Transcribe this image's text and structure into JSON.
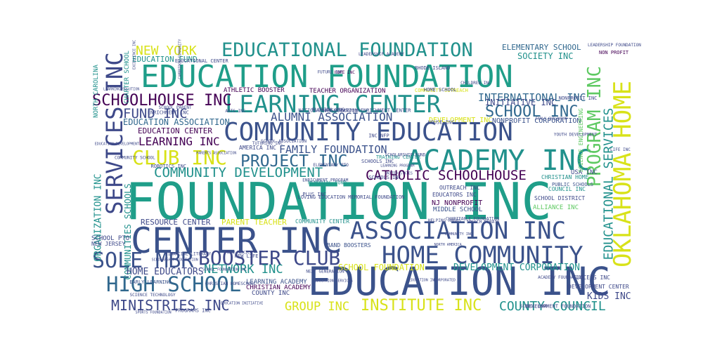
{
  "chart_data": {
    "type": "wordcloud",
    "title": "",
    "palette": [
      "#440154",
      "#3b528b",
      "#21918c",
      "#5ec962",
      "#b5de2b"
    ],
    "words": [
      {
        "text": "FOUNDATION INC",
        "weight": 100,
        "color": "#1f9e89",
        "rotate": false
      },
      {
        "text": "EDUCATION FOUNDATION",
        "weight": 72,
        "color": "#1f9e89",
        "rotate": false
      },
      {
        "text": "EDUCATION INC",
        "weight": 70,
        "color": "#3b528b",
        "rotate": false
      },
      {
        "text": "CENTER INC",
        "weight": 64,
        "color": "#3b528b",
        "rotate": false
      },
      {
        "text": "LEARNING CENTER",
        "weight": 55,
        "color": "#21918c",
        "rotate": false
      },
      {
        "text": "COMMUNITY EDUCATION",
        "weight": 53,
        "color": "#3b528b",
        "rotate": false
      },
      {
        "text": "ACADEMY INC",
        "weight": 52,
        "color": "#21918c",
        "rotate": false
      },
      {
        "text": "ASSOCIATION INC",
        "weight": 50,
        "color": "#3b528b",
        "rotate": false
      },
      {
        "text": "HOME COMMUNITY",
        "weight": 49,
        "color": "#3b528b",
        "rotate": false
      },
      {
        "text": "OKLAHOMA HOME",
        "weight": 47,
        "color": "#d8e219",
        "rotate": true
      },
      {
        "text": "SERVICES INC",
        "weight": 45,
        "color": "#3e4989",
        "rotate": true
      },
      {
        "text": "SOLE MBR",
        "weight": 40,
        "color": "#3b528b",
        "rotate": false
      },
      {
        "text": "BOOSTER CLUB",
        "weight": 39,
        "color": "#3e4989",
        "rotate": false
      },
      {
        "text": "HIGH SCHOOL",
        "weight": 37,
        "color": "#31688e",
        "rotate": false
      },
      {
        "text": "EDUCATIONAL FOUNDATION",
        "weight": 35,
        "color": "#21918c",
        "rotate": false
      },
      {
        "text": "PROGRAM INC",
        "weight": 34,
        "color": "#5ec962",
        "rotate": true
      },
      {
        "text": "CLUB INC",
        "weight": 33,
        "color": "#d8e219",
        "rotate": false
      },
      {
        "text": "PROJECT INC",
        "weight": 32,
        "color": "#31688e",
        "rotate": false
      },
      {
        "text": "SCHOOLHOUSE INC",
        "weight": 30,
        "color": "#440154",
        "rotate": false
      },
      {
        "text": "FUND INC",
        "weight": 30,
        "color": "#3e4989",
        "rotate": false
      },
      {
        "text": "SCHOOL INC",
        "weight": 30,
        "color": "#31688e",
        "rotate": false
      },
      {
        "text": "MINISTRIES INC",
        "weight": 28,
        "color": "#3e4989",
        "rotate": false
      },
      {
        "text": "INSTITUTE INC",
        "weight": 28,
        "color": "#d8e219",
        "rotate": false
      },
      {
        "text": "EDUCATIONAL SERVICES",
        "weight": 27,
        "color": "#21918c",
        "rotate": true
      },
      {
        "text": "CATHOLIC SCHOOLHOUSE",
        "weight": 26,
        "color": "#440154",
        "rotate": false
      },
      {
        "text": "COMMUNITY DEVELOPMENT",
        "weight": 25,
        "color": "#21918c",
        "rotate": false
      },
      {
        "text": "NEW YORK",
        "weight": 25,
        "color": "#d8e219",
        "rotate": false
      },
      {
        "text": "ALUMNI ASSOCIATION",
        "weight": 24,
        "color": "#3b528b",
        "rotate": false
      },
      {
        "text": "GROUP INC",
        "weight": 24,
        "color": "#d8e219",
        "rotate": false
      },
      {
        "text": "COUNTY COUNCIL",
        "weight": 24,
        "color": "#21918c",
        "rotate": false
      },
      {
        "text": "NETWORK INC",
        "weight": 23,
        "color": "#21918c",
        "rotate": false
      },
      {
        "text": "FAMILY FOUNDATION",
        "weight": 21,
        "color": "#3b528b",
        "rotate": false
      },
      {
        "text": "LEARNING INC",
        "weight": 20,
        "color": "#440154",
        "rotate": false
      },
      {
        "text": "INTERNATIONAL INC",
        "weight": 19,
        "color": "#31688e",
        "rotate": false
      },
      {
        "text": "ORGANIZATION INC",
        "weight": 17,
        "color": "#21918c",
        "rotate": true
      },
      {
        "text": "COMMUNITIES SCHOOLS",
        "weight": 17,
        "color": "#21918c",
        "rotate": true
      },
      {
        "text": "HOME EDUCATORS",
        "weight": 17,
        "color": "#3e4989",
        "rotate": false
      },
      {
        "text": "DEVELOPMENT CORPORATION",
        "weight": 17,
        "color": "#21918c",
        "rotate": false
      },
      {
        "text": "SCHOOL FOUNDATION",
        "weight": 16,
        "color": "#d8e219",
        "rotate": false
      },
      {
        "text": "INITIATIVE INC",
        "weight": 15,
        "color": "#3e4989",
        "rotate": false
      },
      {
        "text": "EDUCATION ASSOCIATION",
        "weight": 15,
        "color": "#31688e",
        "rotate": false
      },
      {
        "text": "SOCIETY INC",
        "weight": 14,
        "color": "#21918c",
        "rotate": false
      },
      {
        "text": "EDUCATION CENTER",
        "weight": 14,
        "color": "#440154",
        "rotate": false
      },
      {
        "text": "ELEMENTARY SCHOOL",
        "weight": 13,
        "color": "#31688e",
        "rotate": false
      },
      {
        "text": "PARENT TEACHER",
        "weight": 13,
        "color": "#d8e219",
        "rotate": false
      },
      {
        "text": "KIDS INC",
        "weight": 13,
        "color": "#3e4989",
        "rotate": false
      },
      {
        "text": "RESOURCE CENTER",
        "weight": 12,
        "color": "#3e4989",
        "rotate": false
      },
      {
        "text": "EDUCATION FUND",
        "weight": 12,
        "color": "#21918c",
        "rotate": false
      },
      {
        "text": "NONPROFIT CORPORATION",
        "weight": 12,
        "color": "#3b528b",
        "rotate": false
      },
      {
        "text": "DEVELOPMENT INC",
        "weight": 12,
        "color": "#d8e219",
        "rotate": false
      },
      {
        "text": "NJ NONPROFIT",
        "weight": 12,
        "color": "#440154",
        "rotate": false
      },
      {
        "text": "MIDDLE SCHOOL",
        "weight": 11,
        "color": "#3b528b",
        "rotate": false
      },
      {
        "text": "CHRISTIAN ACADEMY",
        "weight": 11,
        "color": "#440154",
        "rotate": false
      },
      {
        "text": "LEARNING ACADEMY",
        "weight": 11,
        "color": "#3b528b",
        "rotate": false
      },
      {
        "text": "BAND BOOSTERS",
        "weight": 10,
        "color": "#3b528b",
        "rotate": false
      },
      {
        "text": "COUNTY INC",
        "weight": 10,
        "color": "#3e4989",
        "rotate": false
      },
      {
        "text": "ALLIANCE INC",
        "weight": 10,
        "color": "#5ec962",
        "rotate": false
      },
      {
        "text": "SCHOOL DISTRICT",
        "weight": 10,
        "color": "#3e4989",
        "rotate": false
      },
      {
        "text": "COMMUNITY CENTER",
        "weight": 10,
        "color": "#21918c",
        "rotate": false
      },
      {
        "text": "SCHOOL PTO",
        "weight": 10,
        "color": "#3e4989",
        "rotate": false
      },
      {
        "text": "NEW JERSEY",
        "weight": 10,
        "color": "#3e4989",
        "rotate": false
      },
      {
        "text": "ATHLETIC BOOSTER",
        "weight": 10,
        "color": "#440154",
        "rotate": false
      },
      {
        "text": "DEVELOPMENT CENTER",
        "weight": 10,
        "color": "#3e4989",
        "rotate": false
      },
      {
        "text": "SUCCESS INC",
        "weight": 10,
        "color": "#3e4989",
        "rotate": false
      },
      {
        "text": "OUTREACH INC",
        "weight": 9,
        "color": "#3e4989",
        "rotate": false
      },
      {
        "text": "EDUCATORS INC",
        "weight": 9,
        "color": "#3e4989",
        "rotate": false
      },
      {
        "text": "USA INC",
        "weight": 9,
        "color": "#3e4989",
        "rotate": false
      },
      {
        "text": "CHRISTIAN HOME",
        "weight": 9,
        "color": "#21918c",
        "rotate": false
      },
      {
        "text": "COUNCIL INC",
        "weight": 9,
        "color": "#21918c",
        "rotate": false
      },
      {
        "text": "PUBLIC SCHOOLS",
        "weight": 9,
        "color": "#3b528b",
        "rotate": false
      },
      {
        "text": "AMERICA INC",
        "weight": 9,
        "color": "#3e4989",
        "rotate": false
      },
      {
        "text": "SCHOOLS INC",
        "weight": 9,
        "color": "#3e4989",
        "rotate": false
      },
      {
        "text": "NORTH CAROLINA",
        "weight": 9,
        "color": "#21918c",
        "rotate": true
      },
      {
        "text": "CHARTER SCHOOL",
        "weight": 9,
        "color": "#21918c",
        "rotate": true
      },
      {
        "text": "TEACHER ORGANIZATION",
        "weight": 8,
        "color": "#440154",
        "rotate": false
      },
      {
        "text": "COMMUNITY OUTREACH",
        "weight": 8,
        "color": "#d8e219",
        "rotate": false
      },
      {
        "text": "SCIENCE ENGINEERING",
        "weight": 8,
        "color": "#5ec962",
        "rotate": true
      },
      {
        "text": "HOPE INC",
        "weight": 7,
        "color": "#440154",
        "rotate": false
      },
      {
        "text": "LIFE INC",
        "weight": 7,
        "color": "#3e4989",
        "rotate": false
      },
      {
        "text": "NON PROFIT",
        "weight": 7,
        "color": "#440154",
        "rotate": false
      },
      {
        "text": "LEADERSHIP FOUNDATION",
        "weight": 6,
        "color": "#3e4989",
        "rotate": false
      },
      {
        "text": "LOVING EDUCATION MEMORIAL FOUNDATION",
        "weight": 6,
        "color": "#3e4989",
        "rotate": false
      },
      {
        "text": "ENRICHMENT INC",
        "weight": 6,
        "color": "#3e4989",
        "rotate": false
      },
      {
        "text": "MEMORIAL FUND",
        "weight": 6,
        "color": "#21918c",
        "rotate": false
      },
      {
        "text": "EARLY LEARNING",
        "weight": 6,
        "color": "#3b528b",
        "rotate": false
      },
      {
        "text": "TRAINING CENTER",
        "weight": 6,
        "color": "#21918c",
        "rotate": false
      },
      {
        "text": "NEW LIFE",
        "weight": 6,
        "color": "#3e4989",
        "rotate": false
      },
      {
        "text": "RHODE ISLAND",
        "weight": 6,
        "color": "#3e4989",
        "rotate": false
      },
      {
        "text": "NATIONAL ASSOCIATION ENRICHMENT CENTER",
        "weight": 6,
        "color": "#3e4989",
        "rotate": false
      },
      {
        "text": "HOME SCHOOL",
        "weight": 6,
        "color": "#3e4989",
        "rotate": false
      },
      {
        "text": "SCHOOLS INC",
        "weight": 6,
        "color": "#3e4989",
        "rotate": false
      },
      {
        "text": "EDUCATIONAL CENTER",
        "weight": 6,
        "color": "#3e4989",
        "rotate": false
      },
      {
        "text": "DEVELOPMENT FOUNDATION",
        "weight": 6,
        "color": "#3e4989",
        "rotate": false
      },
      {
        "text": "ROBOTICS INC",
        "weight": 6,
        "color": "#3e4989",
        "rotate": false
      },
      {
        "text": "NONPROFIT INC",
        "weight": 6,
        "color": "#3e4989",
        "rotate": false
      },
      {
        "text": "PLUS INC",
        "weight": 6,
        "color": "#3e4989",
        "rotate": false
      },
      {
        "text": "HOUSE INC",
        "weight": 6,
        "color": "#3e4989",
        "rotate": false
      },
      {
        "text": "PROGRAMS INC",
        "weight": 6,
        "color": "#3e4989",
        "rotate": false
      },
      {
        "text": "FLORIDA INC",
        "weight": 6,
        "color": "#3e4989",
        "rotate": false
      },
      {
        "text": "INC NFP",
        "weight": 6,
        "color": "#3e4989",
        "rotate": false
      },
      {
        "text": "FINANCIAL LITERACY",
        "weight": 5,
        "color": "#3e4989",
        "rotate": false
      },
      {
        "text": "SCHOOL ASSOCIATION",
        "weight": 5,
        "color": "#3e4989",
        "rotate": false
      },
      {
        "text": "SCIENCE TECHNOLOGY",
        "weight": 5,
        "color": "#3e4989",
        "rotate": false
      },
      {
        "text": "CHRISTIAN HOMESCHOOL",
        "weight": 5,
        "color": "#3e4989",
        "rotate": false
      },
      {
        "text": "HOPE FOUNDATION",
        "weight": 5,
        "color": "#3e4989",
        "rotate": false
      },
      {
        "text": "SCHOLARSHIP FUND",
        "weight": 5,
        "color": "#3e4989",
        "rotate": false
      },
      {
        "text": "SPEECH DEBATE",
        "weight": 5,
        "color": "#3e4989",
        "rotate": false
      },
      {
        "text": "SCHOOL PARENT",
        "weight": 5,
        "color": "#3e4989",
        "rotate": false
      },
      {
        "text": "FUTURE INC",
        "weight": 5,
        "color": "#3e4989",
        "rotate": false
      },
      {
        "text": "COMMUNITY SCHOOL",
        "weight": 5,
        "color": "#3e4989",
        "rotate": false
      },
      {
        "text": "HELPING HANDS",
        "weight": 5,
        "color": "#3e4989",
        "rotate": false
      },
      {
        "text": "YOUTH DEVELOPMENT",
        "weight": 5,
        "color": "#3e4989",
        "rotate": false
      },
      {
        "text": "ENRICHMENT PROGRAM",
        "weight": 5,
        "color": "#3e4989",
        "rotate": false
      },
      {
        "text": "NEXT GENERATION",
        "weight": 5,
        "color": "#3e4989",
        "rotate": false
      },
      {
        "text": "ELEMENTARY PTO",
        "weight": 5,
        "color": "#3e4989",
        "rotate": false
      },
      {
        "text": "ARTS INC",
        "weight": 5,
        "color": "#3e4989",
        "rotate": false
      },
      {
        "text": "CHILDREN INC",
        "weight": 5,
        "color": "#3e4989",
        "rotate": false
      },
      {
        "text": "NEW MEXICO",
        "weight": 5,
        "color": "#3e4989",
        "rotate": false
      },
      {
        "text": "SCHOOL BAND",
        "weight": 5,
        "color": "#3e4989",
        "rotate": false
      },
      {
        "text": "ACADEMY FOUNDATION",
        "weight": 5,
        "color": "#3e4989",
        "rotate": false
      },
      {
        "text": "CHARITABLE FOUNDATION",
        "weight": 5,
        "color": "#3e4989",
        "rotate": false
      },
      {
        "text": "LEADERSHIP ACADEMY",
        "weight": 5,
        "color": "#3e4989",
        "rotate": false
      },
      {
        "text": "TUTORING INC",
        "weight": 5,
        "color": "#3e4989",
        "rotate": false
      },
      {
        "text": "PARENTS ASSOCIATION",
        "weight": 4,
        "color": "#3e4989",
        "rotate": false
      },
      {
        "text": "NORTH AMERICA",
        "weight": 4,
        "color": "#3e4989",
        "rotate": false
      },
      {
        "text": "EDUCATION INITIATIVE",
        "weight": 4,
        "color": "#3e4989",
        "rotate": false
      },
      {
        "text": "EDUCATION DEVELOPMENT",
        "weight": 4,
        "color": "#3e4989",
        "rotate": false
      },
      {
        "text": "LEARNING PROGRAM",
        "weight": 4,
        "color": "#3e4989",
        "rotate": false
      },
      {
        "text": "SPORTS FOUNDATION",
        "weight": 4,
        "color": "#3e4989",
        "rotate": false
      },
      {
        "text": "EDUCATION SERVICES",
        "weight": 4,
        "color": "#3e4989",
        "rotate": false
      },
      {
        "text": "UNITED STATES",
        "weight": 4,
        "color": "#3e4989",
        "rotate": false
      },
      {
        "text": "SCHOLARSHIP FOUNDATION",
        "weight": 4,
        "color": "#3e4989",
        "rotate": false
      },
      {
        "text": "EARLY CHILDHOOD",
        "weight": 4,
        "color": "#3e4989",
        "rotate": false
      },
      {
        "text": "LEARNING SOLUTION",
        "weight": 4,
        "color": "#3e4989",
        "rotate": false
      },
      {
        "text": "COMMUNITY INC",
        "weight": 4,
        "color": "#3e4989",
        "rotate": false
      },
      {
        "text": "EDUCATION INCORPORATED",
        "weight": 4,
        "color": "#3e4989",
        "rotate": false
      },
      {
        "text": "SCHOOL FOUNDATION INC",
        "weight": 4,
        "color": "#3e4989",
        "rotate": false
      },
      {
        "text": "CAMBRIDGE COMMUNITY",
        "weight": 4,
        "color": "#3e4989",
        "rotate": true
      },
      {
        "text": "EXCELLENCE INC",
        "weight": 4,
        "color": "#3e4989",
        "rotate": true
      }
    ]
  }
}
